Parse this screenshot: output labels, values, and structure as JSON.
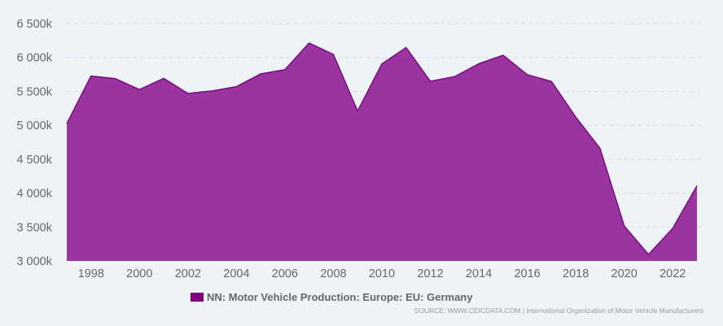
{
  "chart_data": {
    "type": "area",
    "x": [
      1997,
      1998,
      1999,
      2000,
      2001,
      2002,
      2003,
      2004,
      2005,
      2006,
      2007,
      2008,
      2009,
      2010,
      2011,
      2012,
      2013,
      2014,
      2015,
      2016,
      2017,
      2018,
      2019,
      2020,
      2021,
      2022,
      2023
    ],
    "series": [
      {
        "name": "NN: Motor Vehicle Production: Europe: EU: Germany",
        "values": [
          5023,
          5727,
          5688,
          5527,
          5692,
          5469,
          5507,
          5570,
          5758,
          5820,
          6213,
          6046,
          5210,
          5906,
          6147,
          5649,
          5718,
          5908,
          6033,
          5747,
          5646,
          5120,
          4661,
          3515,
          3096,
          3480,
          4109
        ]
      }
    ],
    "ylim": [
      3000,
      6500
    ],
    "yticks": [
      3000,
      3500,
      4000,
      4500,
      5000,
      5500,
      6000,
      6500
    ],
    "ytick_labels": [
      "3 000k",
      "3 500k",
      "4 000k",
      "4 500k",
      "5 000k",
      "5 500k",
      "6 000k",
      "6 500k"
    ],
    "xticks": [
      1998,
      2000,
      2002,
      2004,
      2006,
      2008,
      2010,
      2012,
      2014,
      2016,
      2018,
      2020,
      2022
    ],
    "xtick_labels": [
      "1998",
      "2000",
      "2002",
      "2004",
      "2006",
      "2008",
      "2010",
      "2012",
      "2014",
      "2016",
      "2018",
      "2020",
      "2022"
    ],
    "grid": true,
    "legend_position": "bottom-center",
    "colors": {
      "fill": "#9a35a0",
      "line": "#7a0a80",
      "swatch": "#800080",
      "grid": "#d8dde3"
    }
  },
  "legend": {
    "label": "NN: Motor Vehicle Production: Europe: EU: Germany"
  },
  "source": "SOURCE: WWW.CEICDATA.COM | International Organization of Motor Vehicle Manufacturers"
}
